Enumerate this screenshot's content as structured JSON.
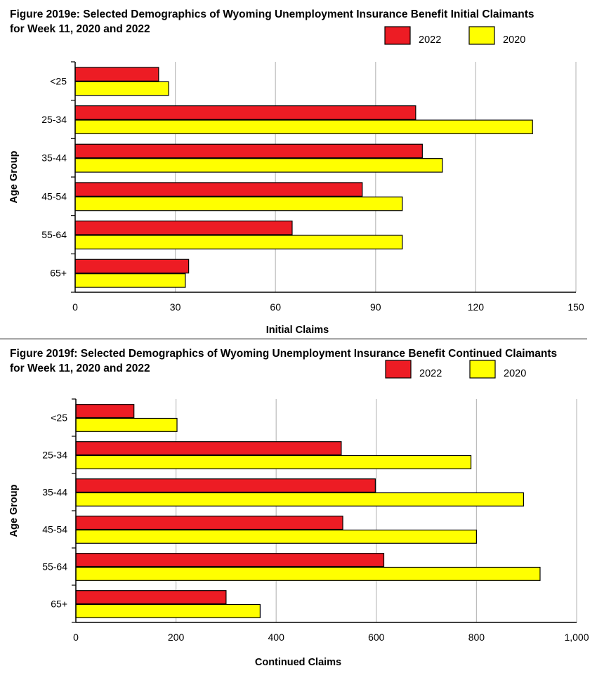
{
  "chart_data": [
    {
      "type": "bar",
      "orientation": "horizontal",
      "title": "Figure 2019e: Selected Demographics of Wyoming Unemployment Insurance Benefit Initial Claimants\nfor Week 11, 2020 and 2022",
      "xlabel": "Initial Claims",
      "ylabel": "Age Group",
      "categories": [
        "<25",
        "25-34",
        "35-44",
        "45-54",
        "55-64",
        "65+"
      ],
      "series": [
        {
          "name": "2022",
          "color": "#ed1c24",
          "values": [
            25,
            102,
            104,
            86,
            65,
            34
          ]
        },
        {
          "name": "2020",
          "color": "#ffff00",
          "values": [
            28,
            137,
            110,
            98,
            98,
            33
          ]
        }
      ],
      "xlim": [
        0,
        150
      ],
      "x_ticks": [
        "0",
        "30",
        "60",
        "90",
        "120",
        "150"
      ],
      "grid": "vertical",
      "legend": "top-right"
    },
    {
      "type": "bar",
      "orientation": "horizontal",
      "title": "Figure 2019f: Selected Demographics of Wyoming Unemployment Insurance Benefit Continued Claimants\nfor Week 11, 2020 and 2022",
      "xlabel": "Continued Claims",
      "ylabel": "Age Group",
      "categories": [
        "<25",
        "25-34",
        "35-44",
        "45-54",
        "55-64",
        "65+"
      ],
      "series": [
        {
          "name": "2022",
          "color": "#ed1c24",
          "values": [
            116,
            530,
            598,
            533,
            615,
            300
          ]
        },
        {
          "name": "2020",
          "color": "#ffff00",
          "values": [
            202,
            789,
            894,
            800,
            927,
            368
          ]
        }
      ],
      "xlim": [
        0,
        1000
      ],
      "x_ticks": [
        "0",
        "200",
        "400",
        "600",
        "800",
        "1,000"
      ],
      "grid": "vertical",
      "legend": "top-right"
    }
  ]
}
